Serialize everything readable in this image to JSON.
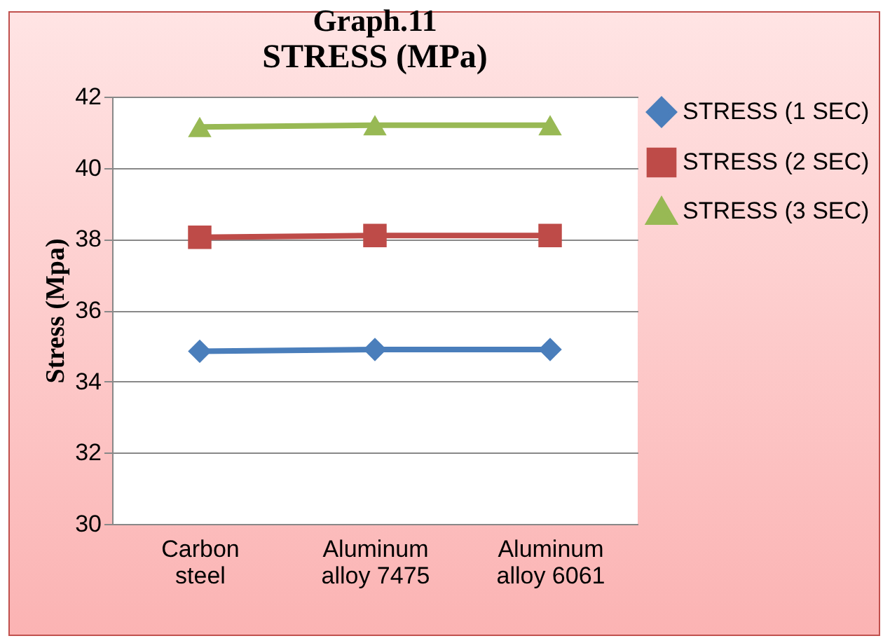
{
  "chart_data": {
    "type": "line",
    "title": "Graph.11",
    "subtitle": "STRESS  (MPa)",
    "ylabel": "Stress   (Mpa)",
    "categories": [
      "Carbon steel",
      "Aluminum alloy 7475",
      "Aluminum alloy 6061"
    ],
    "series": [
      {
        "name": "STRESS (1 SEC)",
        "color": "#4a7ebb",
        "marker": "diamond",
        "values": [
          34.85,
          34.9,
          34.9
        ]
      },
      {
        "name": "STRESS (2 SEC)",
        "color": "#be4b48",
        "marker": "square",
        "values": [
          38.05,
          38.1,
          38.1
        ]
      },
      {
        "name": "STRESS (3 SEC)",
        "color": "#98b954",
        "marker": "triangle",
        "values": [
          41.15,
          41.2,
          41.2
        ]
      }
    ],
    "ylim": [
      30,
      42
    ],
    "yticks": [
      30,
      32,
      34,
      36,
      38,
      40,
      42
    ],
    "grid": "y",
    "legend": "right"
  }
}
